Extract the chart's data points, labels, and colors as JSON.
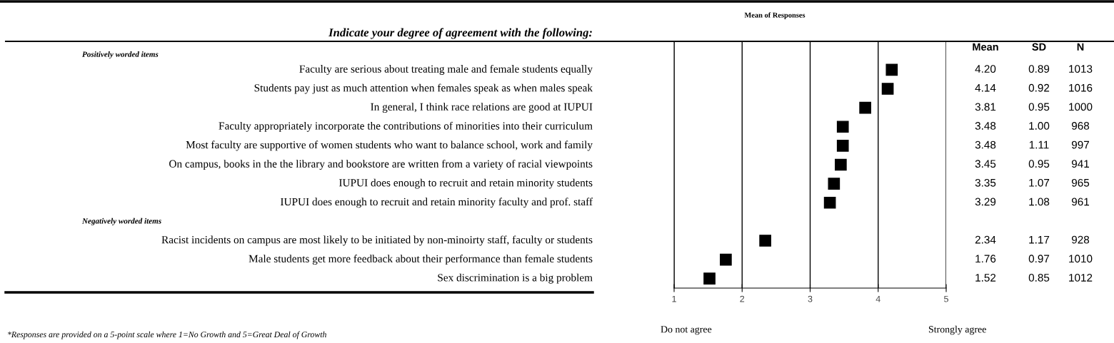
{
  "chart_data": {
    "type": "scatter",
    "orientation": "horizontal",
    "title": "Indicate your degree of agreement with the following:",
    "subtitle": "Mean of Responses",
    "categories": [
      null,
      "Faculty are serious about treating male and female students equally",
      "Students pay just as much attention when females speak as when males speak",
      "In general, I think race relations are good at IUPUI",
      "Faculty appropriately incorporate the contributions of minorities into their curriculum",
      "Most faculty are supportive of women students who want to balance school, work and family",
      "On campus, books in the the library and bookstore are written from a variety of racial viewpoints",
      "IUPUI does enough to recruit and retain minority students",
      "IUPUI does enough to recruit and retain minority faculty and prof. staff",
      null,
      "Racist incidents on campus are most likely to be initiated by non-minoirty staff, faculty or students",
      "Male students get more feedback about their performance than female students",
      "Sex discrimination is a big problem"
    ],
    "series": [
      {
        "color": "#000000",
        "values": [
          null,
          4.2,
          4.14,
          3.81,
          3.48,
          3.48,
          3.45,
          3.35,
          3.29,
          null,
          2.34,
          1.76,
          1.52
        ],
        "value_labels": [
          null,
          "4.20",
          "4.14",
          "3.81",
          "3.48",
          "3.48",
          "3.45",
          "3.35",
          "3.29",
          null,
          "2.34",
          "1.76",
          "1.52"
        ]
      }
    ],
    "xlim": [
      1,
      5
    ],
    "xticks": [
      1,
      2,
      3,
      4,
      5
    ],
    "grid": "x",
    "marker": "square",
    "legend": false,
    "annotations": [
      "*Responses are provided on a 5-point scale where 1=No Growth and 5=Great Deal of Growth",
      "Do not agree",
      "Strongly agree",
      "Mean",
      "SD",
      "N",
      "0.89",
      "1013",
      "0.92",
      "1016",
      "0.95",
      "1000",
      "1.00",
      "968",
      "1.11",
      "997",
      "0.95",
      "941",
      "1.07",
      "965",
      "1.08",
      "961",
      "1.17",
      "928",
      "0.97",
      "1010",
      "0.85",
      "1012",
      "Positively worded items",
      "Negatively worded items"
    ]
  }
}
